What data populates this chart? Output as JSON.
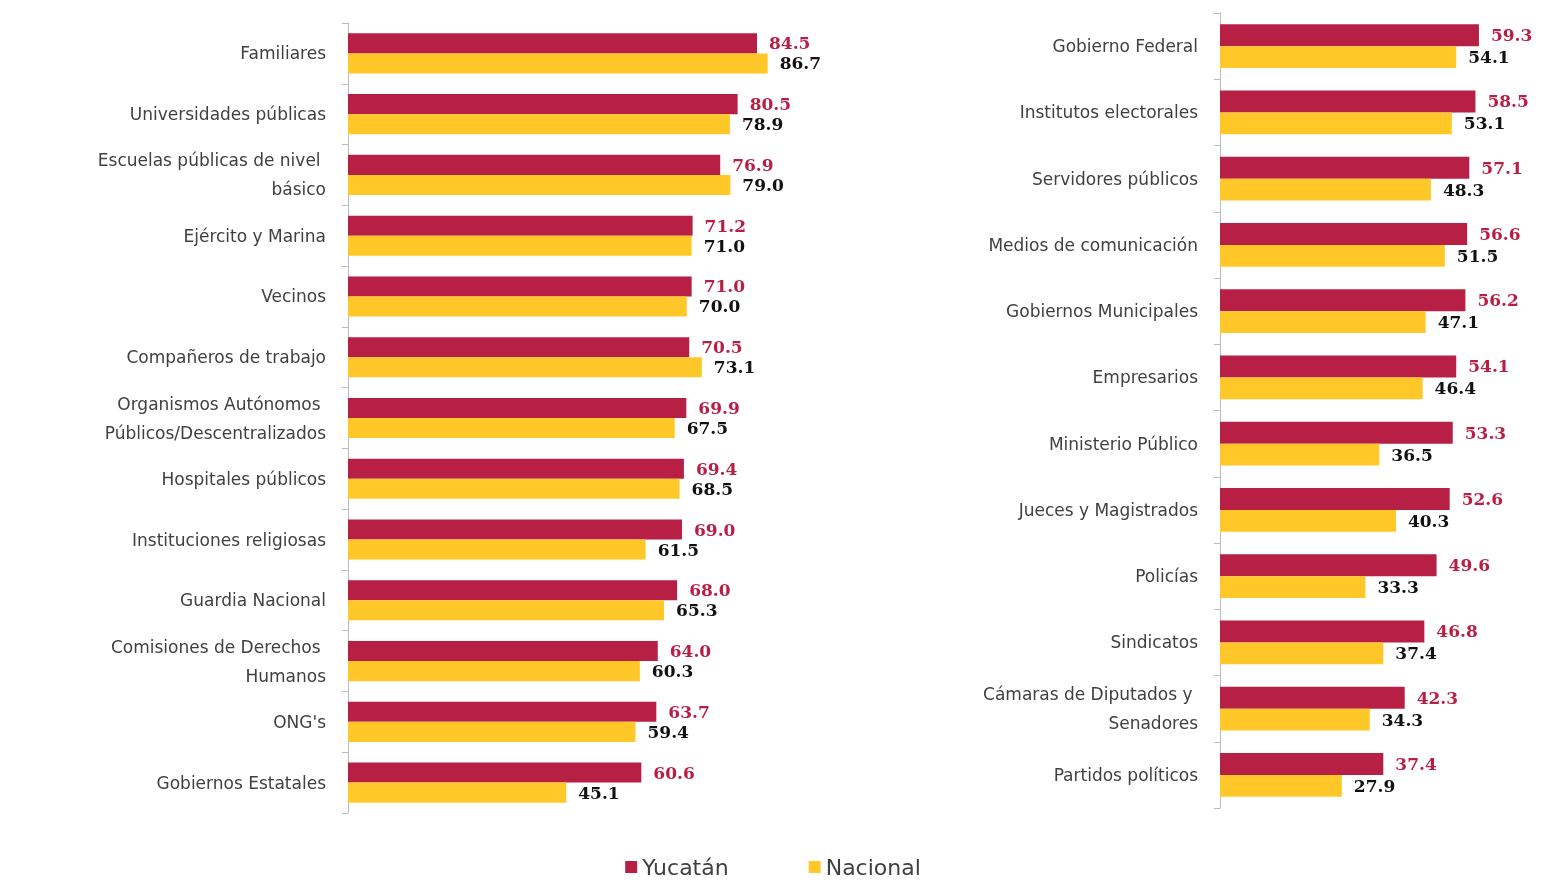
{
  "chart_data": [
    {
      "type": "bar",
      "orientation": "horizontal",
      "categories": [
        "Familiares",
        "Universidades públicas",
        "Escuelas públicas de nivel básico",
        "Ejército y Marina",
        "Vecinos",
        "Compañeros de trabajo",
        "Organismos Autónomos Públicos/Descentralizados",
        "Hospitales públicos",
        "Instituciones religiosas",
        "Guardia Nacional",
        "Comisiones de Derechos Humanos",
        "ONG's",
        "Gobiernos Estatales"
      ],
      "series": [
        {
          "name": "Yucatán",
          "color": "#b81f45",
          "values": [
            84.5,
            80.5,
            76.9,
            71.2,
            71.0,
            70.5,
            69.9,
            69.4,
            69.0,
            68.0,
            64.0,
            63.7,
            60.6
          ],
          "value_labels": [
            "84.5",
            "80.5",
            "76.9",
            "71.2",
            "71.0",
            "70.5",
            "69.9",
            "69.4",
            "69.0",
            "68.0",
            "64.0",
            "63.7",
            "60.6"
          ]
        },
        {
          "name": "Nacional",
          "color": "#ffc828",
          "values": [
            86.7,
            78.9,
            79.0,
            71.0,
            70.0,
            73.1,
            67.5,
            68.5,
            61.5,
            65.3,
            60.3,
            59.4,
            45.1
          ],
          "value_labels": [
            "86.7",
            "78.9",
            "79.0",
            "71.0",
            "70.0",
            "73.1",
            "67.5",
            "68.5",
            "61.5",
            "65.3",
            "60.3",
            "59.4",
            "45.1"
          ]
        }
      ],
      "grid": false,
      "legend": "bottom"
    },
    {
      "type": "bar",
      "orientation": "horizontal",
      "categories": [
        "Gobierno Federal",
        "Institutos electorales",
        "Servidores públicos",
        "Medios de comunicación",
        "Gobiernos Municipales",
        "Empresarios",
        "Ministerio Público",
        "Jueces y Magistrados",
        "Policías",
        "Sindicatos",
        "Cámaras de Diputados y Senadores",
        "Partidos políticos"
      ],
      "series": [
        {
          "name": "Yucatán",
          "color": "#b81f45",
          "values": [
            59.3,
            58.5,
            57.1,
            56.6,
            56.2,
            54.1,
            53.3,
            52.6,
            49.6,
            46.8,
            42.3,
            37.4
          ],
          "value_labels": [
            "59.3",
            "58.5",
            "57.1",
            "56.6",
            "56.2",
            "54.1",
            "53.3",
            "52.6",
            "49.6",
            "46.8",
            "42.3",
            "37.4"
          ]
        },
        {
          "name": "Nacional",
          "color": "#ffc828",
          "values": [
            54.1,
            53.1,
            48.3,
            51.5,
            47.1,
            46.4,
            36.5,
            40.3,
            33.3,
            37.4,
            34.3,
            27.9
          ],
          "value_labels": [
            "54.1",
            "53.1",
            "48.3",
            "51.5",
            "47.1",
            "46.4",
            "36.5",
            "40.3",
            "33.3",
            "37.4",
            "34.3",
            "27.9"
          ]
        }
      ],
      "grid": false,
      "legend": "bottom"
    }
  ]
}
